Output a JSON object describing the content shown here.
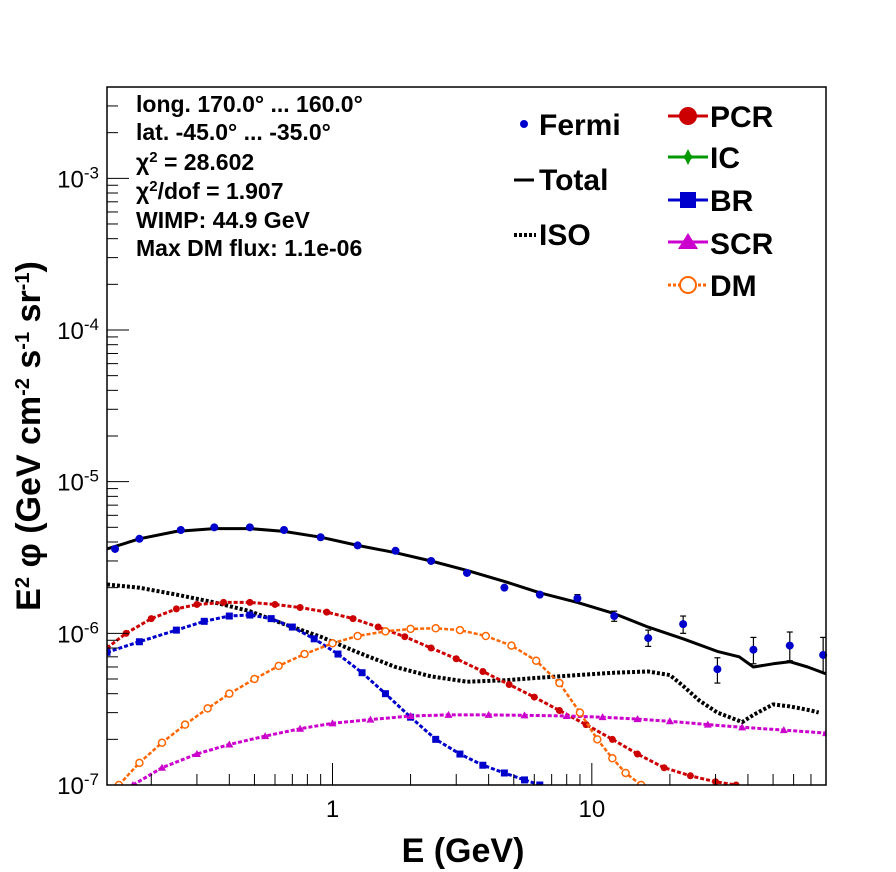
{
  "chart_data": {
    "type": "line",
    "x_scale": "log",
    "y_scale": "log",
    "xlim": [
      0.135,
      80
    ],
    "ylim": [
      1e-07,
      0.004
    ],
    "grid": false,
    "legend_position": "top-right",
    "xlabel": "E (GeV)",
    "ylabel": {
      "prefix": "E",
      "sup1": "2",
      "phi": " φ (GeV cm",
      "sup2": "-2",
      "mid": " s",
      "sup3": "-1",
      "mid2": " sr",
      "sup4": "-1",
      "suffix": ")"
    },
    "x_ticks": [
      {
        "value": 1,
        "label": "1"
      },
      {
        "value": 10,
        "label": "10"
      }
    ],
    "y_ticks": [
      {
        "value": 1e-07,
        "base": "10",
        "exp": "-7"
      },
      {
        "value": 1e-06,
        "base": "10",
        "exp": "-6"
      },
      {
        "value": 1e-05,
        "base": "10",
        "exp": "-5"
      },
      {
        "value": 0.0001,
        "base": "10",
        "exp": "-4"
      },
      {
        "value": 0.001,
        "base": "10",
        "exp": "-3"
      }
    ],
    "stats": [
      {
        "text": "long. 170.0° ... 160.0°"
      },
      {
        "text": "lat. -45.0° ... -35.0°"
      },
      {
        "chi": "χ",
        "sup": "2",
        "text": " = 28.602"
      },
      {
        "chi": "χ",
        "sup": "2",
        "text": "/dof = 1.907"
      },
      {
        "text": "WIMP: 44.9 GeV"
      },
      {
        "text": "Max DM flux: 1.1e-06"
      }
    ],
    "legend": [
      {
        "key": "fermi",
        "label": "Fermi",
        "color": "#0000cc",
        "marker": "dot"
      },
      {
        "key": "total",
        "label": "Total",
        "color": "#000000",
        "marker": "solid"
      },
      {
        "key": "iso",
        "label": "ISO",
        "color": "#000000",
        "marker": "dotted"
      },
      {
        "key": "pcr",
        "label": "PCR",
        "color": "#cc0000",
        "marker": "circle"
      },
      {
        "key": "ic",
        "label": "IC",
        "color": "#009900",
        "marker": "star"
      },
      {
        "key": "br",
        "label": "BR",
        "color": "#0000cc",
        "marker": "square"
      },
      {
        "key": "scr",
        "label": "SCR",
        "color": "#cc00cc",
        "marker": "triangle"
      },
      {
        "key": "dm",
        "label": "DM",
        "color": "#ff6600",
        "marker": "open-circle"
      }
    ],
    "fermi": {
      "name": "Fermi",
      "x": [
        0.145,
        0.18,
        0.26,
        0.35,
        0.48,
        0.65,
        0.9,
        1.25,
        1.75,
        2.4,
        3.3,
        4.6,
        6.3,
        8.8,
        12.2,
        16.5,
        22.5,
        30.5,
        42,
        58,
        78
      ],
      "y": [
        3.6e-06,
        4.2e-06,
        4.8e-06,
        5e-06,
        5e-06,
        4.8e-06,
        4.3e-06,
        3.8e-06,
        3.5e-06,
        3e-06,
        2.5e-06,
        2e-06,
        1.8e-06,
        1.7e-06,
        1.3e-06,
        9.3e-07,
        1.15e-06,
        5.8e-07,
        7.8e-07,
        8.3e-07,
        7.2e-07
      ],
      "ylo": [
        3.5e-06,
        4.1e-06,
        4.7e-06,
        4.9e-06,
        4.9e-06,
        4.7e-06,
        4.2e-06,
        3.7e-06,
        3.4e-06,
        2.9e-06,
        2.45e-06,
        1.95e-06,
        1.75e-06,
        1.6e-06,
        1.2e-06,
        8.2e-07,
        1e-06,
        4.7e-07,
        6.3e-07,
        6.6e-07,
        5.5e-07
      ],
      "yhi": [
        3.7e-06,
        4.3e-06,
        4.9e-06,
        5.1e-06,
        5.1e-06,
        4.9e-06,
        4.4e-06,
        3.9e-06,
        3.6e-06,
        3.1e-06,
        2.55e-06,
        2.05e-06,
        1.85e-06,
        1.8e-06,
        1.4e-06,
        1.05e-06,
        1.3e-06,
        6.9e-07,
        9.4e-07,
        1.02e-06,
        9.4e-07
      ]
    },
    "series": [
      {
        "key": "total",
        "color": "#000000",
        "x": [
          0.135,
          0.18,
          0.25,
          0.35,
          0.48,
          0.65,
          0.9,
          1.25,
          1.75,
          2.4,
          3.3,
          4.6,
          6.3,
          8.8,
          12.2,
          16.5,
          22.5,
          30.5,
          37,
          42,
          50,
          58,
          68,
          80
        ],
        "y": [
          3.6e-06,
          4.2e-06,
          4.7e-06,
          4.9e-06,
          4.9e-06,
          4.7e-06,
          4.3e-06,
          3.8e-06,
          3.4e-06,
          3e-06,
          2.6e-06,
          2.2e-06,
          1.85e-06,
          1.6e-06,
          1.35e-06,
          1.1e-06,
          9.2e-07,
          7.6e-07,
          7e-07,
          6e-07,
          6.3e-07,
          6.5e-07,
          6e-07,
          5.4e-07
        ]
      },
      {
        "key": "iso",
        "color": "#000000",
        "x": [
          0.135,
          0.18,
          0.25,
          0.35,
          0.48,
          0.65,
          0.9,
          1.25,
          1.75,
          2.4,
          3.3,
          4.6,
          6.3,
          8.8,
          12.2,
          16.5,
          20,
          22.5,
          26,
          30.5,
          34,
          38,
          42,
          50,
          58,
          70,
          75
        ],
        "y": [
          2.1e-06,
          2e-06,
          1.8e-06,
          1.6e-06,
          1.4e-06,
          1.15e-06,
          9.5e-07,
          7.5e-07,
          6e-07,
          5.2e-07,
          4.8e-07,
          4.9e-07,
          5.1e-07,
          5.3e-07,
          5.5e-07,
          5.6e-07,
          5.3e-07,
          4.5e-07,
          3.6e-07,
          3e-07,
          2.8e-07,
          2.6e-07,
          2.9e-07,
          3.4e-07,
          3.3e-07,
          3.1e-07,
          3e-07
        ]
      },
      {
        "key": "pcr",
        "color": "#cc0000",
        "x": [
          0.135,
          0.16,
          0.2,
          0.25,
          0.3,
          0.38,
          0.48,
          0.6,
          0.75,
          0.95,
          1.2,
          1.5,
          1.9,
          2.4,
          3.0,
          3.8,
          4.8,
          6.0,
          7.5,
          9.5,
          12,
          15,
          19,
          24,
          30,
          36
        ],
        "y": [
          8e-07,
          1e-06,
          1.25e-06,
          1.45e-06,
          1.55e-06,
          1.6e-06,
          1.6e-06,
          1.55e-06,
          1.48e-06,
          1.38e-06,
          1.25e-06,
          1.1e-06,
          9.5e-07,
          8e-07,
          6.8e-07,
          5.6e-07,
          4.6e-07,
          3.8e-07,
          3.1e-07,
          2.5e-07,
          2e-07,
          1.6e-07,
          1.3e-07,
          1.15e-07,
          1.05e-07,
          1e-07
        ]
      },
      {
        "key": "br",
        "color": "#0000cc",
        "x": [
          0.135,
          0.18,
          0.25,
          0.32,
          0.4,
          0.48,
          0.58,
          0.7,
          0.85,
          1.05,
          1.3,
          1.6,
          2.0,
          2.5,
          3.1,
          3.8,
          4.6,
          5.5,
          6.3
        ],
        "y": [
          7.5e-07,
          8.8e-07,
          1.05e-06,
          1.2e-06,
          1.3e-06,
          1.32e-06,
          1.25e-06,
          1.1e-06,
          9.2e-07,
          7.3e-07,
          5.5e-07,
          4e-07,
          2.8e-07,
          2e-07,
          1.6e-07,
          1.35e-07,
          1.2e-07,
          1.08e-07,
          1e-07
        ]
      },
      {
        "key": "scr",
        "color": "#cc00cc",
        "x": [
          0.17,
          0.22,
          0.3,
          0.4,
          0.55,
          0.75,
          1.0,
          1.4,
          2.0,
          2.8,
          4.0,
          5.5,
          8.0,
          11,
          15,
          20,
          28,
          38,
          55,
          80
        ],
        "y": [
          1e-07,
          1.3e-07,
          1.6e-07,
          1.85e-07,
          2.1e-07,
          2.35e-07,
          2.55e-07,
          2.7e-07,
          2.85e-07,
          2.9e-07,
          2.9e-07,
          2.88e-07,
          2.85e-07,
          2.8e-07,
          2.72e-07,
          2.63e-07,
          2.5e-07,
          2.4e-07,
          2.3e-07,
          2.2e-07
        ]
      },
      {
        "key": "dm",
        "color": "#ff6600",
        "x": [
          0.15,
          0.18,
          0.22,
          0.27,
          0.33,
          0.4,
          0.5,
          0.62,
          0.78,
          1.0,
          1.25,
          1.6,
          2.0,
          2.5,
          3.1,
          3.9,
          4.9,
          6.1,
          7.5,
          9.0,
          10.5,
          12,
          13.5,
          15.5
        ],
        "y": [
          1e-07,
          1.4e-07,
          1.9e-07,
          2.5e-07,
          3.2e-07,
          4e-07,
          5e-07,
          6.1e-07,
          7.3e-07,
          8.6e-07,
          9.6e-07,
          1.03e-06,
          1.07e-06,
          1.08e-06,
          1.05e-06,
          9.6e-07,
          8.3e-07,
          6.6e-07,
          4.7e-07,
          3e-07,
          2e-07,
          1.5e-07,
          1.2e-07,
          1e-07
        ]
      }
    ]
  }
}
